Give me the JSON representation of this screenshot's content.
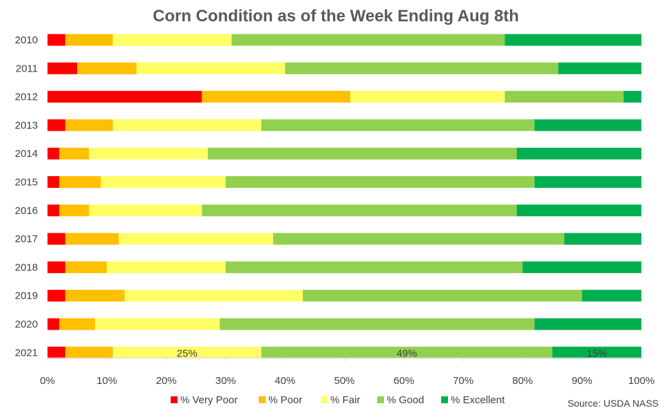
{
  "chart_data": {
    "type": "bar",
    "orientation": "horizontal",
    "stacked": "percent",
    "title": "Corn Condition as of the Week Ending Aug 8th",
    "source": "Source: USDA NASS",
    "categories": [
      "2010",
      "2011",
      "2012",
      "2013",
      "2014",
      "2015",
      "2016",
      "2017",
      "2018",
      "2019",
      "2020",
      "2021"
    ],
    "series": [
      {
        "name": "% Very Poor",
        "color": "#ff0000",
        "values": [
          3,
          5,
          26,
          3,
          2,
          2,
          2,
          3,
          3,
          3,
          2,
          3
        ]
      },
      {
        "name": "% Poor",
        "color": "#ffc000",
        "values": [
          8,
          10,
          25,
          8,
          5,
          7,
          5,
          9,
          7,
          10,
          6,
          8
        ]
      },
      {
        "name": "% Fair",
        "color": "#ffff66",
        "values": [
          20,
          25,
          26,
          25,
          20,
          21,
          19,
          26,
          20,
          30,
          21,
          25
        ]
      },
      {
        "name": "% Good",
        "color": "#92d050",
        "values": [
          46,
          46,
          20,
          46,
          52,
          52,
          53,
          49,
          50,
          47,
          53,
          49
        ]
      },
      {
        "name": "% Excellent",
        "color": "#00b050",
        "values": [
          23,
          14,
          3,
          18,
          21,
          18,
          21,
          13,
          20,
          10,
          18,
          15
        ]
      }
    ],
    "data_labels": [
      {
        "category": "2021",
        "series": "% Fair",
        "text": "25%"
      },
      {
        "category": "2021",
        "series": "% Good",
        "text": "49%"
      },
      {
        "category": "2021",
        "series": "% Excellent",
        "text": "15%"
      }
    ],
    "x_ticks": [
      "0%",
      "10%",
      "20%",
      "30%",
      "40%",
      "50%",
      "60%",
      "70%",
      "80%",
      "90%",
      "100%"
    ],
    "xlim": [
      0,
      100
    ],
    "grid": false,
    "legend_position": "bottom"
  }
}
